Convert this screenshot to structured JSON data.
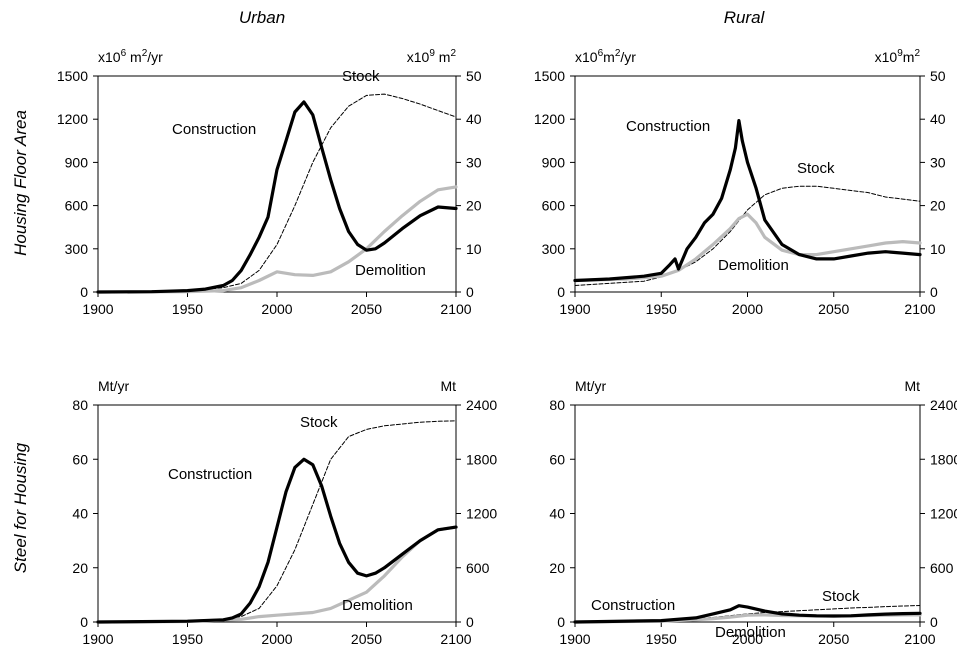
{
  "column_titles": [
    "Urban",
    "Rural"
  ],
  "row_titles": [
    "Housing Floor Area",
    "Steel for Housing"
  ],
  "chart_data": [
    {
      "type": "line",
      "panel": "floor-urban",
      "title": "Urban",
      "xlabel": "",
      "ylabel": "Housing Floor Area",
      "xlim": [
        1900,
        2100
      ],
      "ylim": [
        0,
        1500
      ],
      "y2lim": [
        0,
        50
      ],
      "xticks": [
        1900,
        1950,
        2000,
        2050,
        2100
      ],
      "yticks": [
        0,
        300,
        600,
        900,
        1200,
        1500
      ],
      "y2ticks": [
        0,
        10,
        20,
        30,
        40,
        50
      ],
      "left_unit": "x10^6 m^2/yr",
      "right_unit": "x10^9 m^2",
      "grid": false,
      "series": [
        {
          "name": "Construction",
          "axis": "left",
          "color": "#000000",
          "style": "solid-thick",
          "x": [
            1900,
            1930,
            1950,
            1960,
            1970,
            1975,
            1980,
            1985,
            1990,
            1995,
            2000,
            2005,
            2010,
            2015,
            2020,
            2025,
            2030,
            2035,
            2040,
            2045,
            2050,
            2055,
            2060,
            2070,
            2080,
            2090,
            2100
          ],
          "y": [
            0,
            2,
            10,
            20,
            45,
            80,
            150,
            260,
            380,
            520,
            850,
            1050,
            1250,
            1320,
            1230,
            1000,
            780,
            580,
            420,
            330,
            290,
            300,
            340,
            440,
            530,
            590,
            580
          ]
        },
        {
          "name": "Demolition",
          "axis": "left",
          "color": "#bbbbbb",
          "style": "solid-thick",
          "x": [
            1900,
            1950,
            1970,
            1980,
            1990,
            2000,
            2010,
            2020,
            2030,
            2040,
            2050,
            2060,
            2070,
            2080,
            2090,
            2100
          ],
          "y": [
            0,
            3,
            10,
            30,
            80,
            140,
            120,
            115,
            140,
            210,
            300,
            420,
            530,
            630,
            710,
            730
          ]
        },
        {
          "name": "Stock",
          "axis": "right",
          "color": "#000000",
          "style": "dashed",
          "x": [
            1900,
            1950,
            1970,
            1980,
            1990,
            2000,
            2010,
            2020,
            2030,
            2040,
            2050,
            2060,
            2070,
            2080,
            2090,
            2100
          ],
          "y": [
            0,
            0.3,
            1,
            2,
            5,
            11,
            20,
            30,
            38,
            43,
            45.5,
            45.8,
            44.8,
            43.5,
            42,
            40.5
          ]
        }
      ],
      "annotations": [
        "Construction",
        "Stock",
        "Demolition"
      ]
    },
    {
      "type": "line",
      "panel": "floor-rural",
      "title": "Rural",
      "xlabel": "",
      "ylabel": "",
      "xlim": [
        1900,
        2100
      ],
      "ylim": [
        0,
        1500
      ],
      "y2lim": [
        0,
        50
      ],
      "xticks": [
        1900,
        1950,
        2000,
        2050,
        2100
      ],
      "yticks": [
        0,
        300,
        600,
        900,
        1200,
        1500
      ],
      "y2ticks": [
        0,
        10,
        20,
        30,
        40,
        50
      ],
      "left_unit": "x10^6m^2/yr",
      "right_unit": "x10^9m^2",
      "grid": false,
      "series": [
        {
          "name": "Construction",
          "axis": "left",
          "color": "#000000",
          "style": "solid-thick",
          "x": [
            1900,
            1920,
            1940,
            1950,
            1955,
            1958,
            1960,
            1965,
            1970,
            1975,
            1980,
            1985,
            1990,
            1993,
            1995,
            1997,
            2000,
            2005,
            2010,
            2020,
            2030,
            2040,
            2050,
            2060,
            2070,
            2080,
            2090,
            2100
          ],
          "y": [
            80,
            90,
            110,
            130,
            190,
            230,
            160,
            300,
            380,
            480,
            540,
            650,
            850,
            1000,
            1190,
            1050,
            900,
            720,
            500,
            330,
            260,
            230,
            230,
            250,
            270,
            280,
            270,
            260
          ]
        },
        {
          "name": "Demolition",
          "axis": "left",
          "color": "#bbbbbb",
          "style": "solid-thick",
          "x": [
            1900,
            1930,
            1950,
            1960,
            1970,
            1980,
            1990,
            1995,
            2000,
            2005,
            2010,
            2020,
            2030,
            2040,
            2050,
            2060,
            2070,
            2080,
            2090,
            2100
          ],
          "y": [
            80,
            90,
            110,
            150,
            230,
            330,
            440,
            510,
            540,
            480,
            380,
            290,
            260,
            260,
            280,
            300,
            320,
            340,
            350,
            340
          ]
        },
        {
          "name": "Stock",
          "axis": "right",
          "color": "#000000",
          "style": "dashed",
          "x": [
            1900,
            1920,
            1940,
            1950,
            1960,
            1970,
            1980,
            1990,
            2000,
            2010,
            2020,
            2030,
            2040,
            2050,
            2060,
            2070,
            2080,
            2090,
            2100
          ],
          "y": [
            1.5,
            2,
            2.5,
            3.5,
            5,
            7,
            10,
            14,
            19,
            22.5,
            24,
            24.5,
            24.5,
            24,
            23.5,
            23,
            22,
            21.5,
            21
          ]
        }
      ],
      "annotations": [
        "Construction",
        "Stock",
        "Demolition"
      ]
    },
    {
      "type": "line",
      "panel": "steel-urban",
      "title": "",
      "xlabel": "",
      "ylabel": "Steel for Housing",
      "xlim": [
        1900,
        2100
      ],
      "ylim": [
        0,
        80
      ],
      "y2lim": [
        0,
        2400
      ],
      "xticks": [
        1900,
        1950,
        2000,
        2050,
        2100
      ],
      "yticks": [
        0,
        20,
        40,
        60,
        80
      ],
      "y2ticks": [
        0,
        600,
        1200,
        1800,
        2400
      ],
      "left_unit": "Mt/yr",
      "right_unit": "Mt",
      "grid": false,
      "series": [
        {
          "name": "Construction",
          "axis": "left",
          "color": "#000000",
          "style": "solid-thick",
          "x": [
            1900,
            1950,
            1970,
            1975,
            1980,
            1985,
            1990,
            1995,
            2000,
            2005,
            2010,
            2015,
            2020,
            2025,
            2030,
            2035,
            2040,
            2045,
            2050,
            2055,
            2060,
            2070,
            2080,
            2090,
            2100
          ],
          "y": [
            0,
            0.3,
            0.8,
            1.5,
            3,
            7,
            13,
            22,
            35,
            48,
            57,
            60,
            58,
            50,
            39,
            29,
            22,
            18,
            17,
            18,
            20,
            25,
            30,
            34,
            35
          ]
        },
        {
          "name": "Demolition",
          "axis": "left",
          "color": "#bbbbbb",
          "style": "solid-thick",
          "x": [
            1900,
            1950,
            1980,
            1990,
            2000,
            2010,
            2020,
            2030,
            2040,
            2050,
            2060,
            2070,
            2080,
            2090,
            2100
          ],
          "y": [
            0,
            0.2,
            1,
            2,
            2.5,
            3,
            3.5,
            5,
            8,
            11,
            17,
            24,
            30,
            34,
            35
          ]
        },
        {
          "name": "Stock",
          "axis": "right",
          "color": "#000000",
          "style": "dashed",
          "x": [
            1900,
            1950,
            1970,
            1980,
            1990,
            2000,
            2010,
            2020,
            2030,
            2040,
            2050,
            2060,
            2070,
            2080,
            2090,
            2100
          ],
          "y": [
            0,
            10,
            30,
            60,
            150,
            400,
            800,
            1300,
            1800,
            2050,
            2130,
            2170,
            2190,
            2210,
            2220,
            2225
          ]
        }
      ],
      "annotations": [
        "Construction",
        "Stock",
        "Demolition"
      ]
    },
    {
      "type": "line",
      "panel": "steel-rural",
      "title": "",
      "xlabel": "",
      "ylabel": "",
      "xlim": [
        1900,
        2100
      ],
      "ylim": [
        0,
        80
      ],
      "y2lim": [
        0,
        2400
      ],
      "xticks": [
        1900,
        1950,
        2000,
        2050,
        2100
      ],
      "yticks": [
        0,
        20,
        40,
        60,
        80
      ],
      "y2ticks": [
        0,
        600,
        1200,
        1800,
        2400
      ],
      "left_unit": "Mt/yr",
      "right_unit": "Mt",
      "grid": false,
      "series": [
        {
          "name": "Construction",
          "axis": "left",
          "color": "#000000",
          "style": "solid-thick",
          "x": [
            1900,
            1950,
            1970,
            1980,
            1990,
            1995,
            2000,
            2010,
            2020,
            2030,
            2040,
            2050,
            2060,
            2070,
            2080,
            2090,
            2100
          ],
          "y": [
            0,
            0.5,
            1.5,
            3,
            4.5,
            6,
            5.5,
            4,
            3,
            2.5,
            2.3,
            2.2,
            2.3,
            2.6,
            2.9,
            3.1,
            3.2
          ]
        },
        {
          "name": "Demolition",
          "axis": "left",
          "color": "#bbbbbb",
          "style": "solid-thick",
          "x": [
            1900,
            1950,
            1970,
            1980,
            1990,
            2000,
            2010,
            2020,
            2030,
            2040,
            2050,
            2060,
            2070,
            2080,
            2090,
            2100
          ],
          "y": [
            0,
            0.3,
            0.8,
            1.2,
            1.8,
            2.5,
            2.6,
            2.4,
            2.3,
            2.2,
            2.2,
            2.3,
            2.4,
            2.5,
            2.6,
            2.6
          ]
        },
        {
          "name": "Stock",
          "axis": "right",
          "color": "#000000",
          "style": "dashed",
          "x": [
            1900,
            1950,
            1970,
            1980,
            1990,
            2000,
            2010,
            2020,
            2030,
            2040,
            2050,
            2060,
            2070,
            2080,
            2090,
            2100
          ],
          "y": [
            0,
            20,
            35,
            50,
            70,
            90,
            105,
            115,
            125,
            135,
            145,
            155,
            162,
            170,
            177,
            183
          ]
        }
      ],
      "annotations": [
        "Construction",
        "Stock",
        "Demolition"
      ]
    }
  ]
}
